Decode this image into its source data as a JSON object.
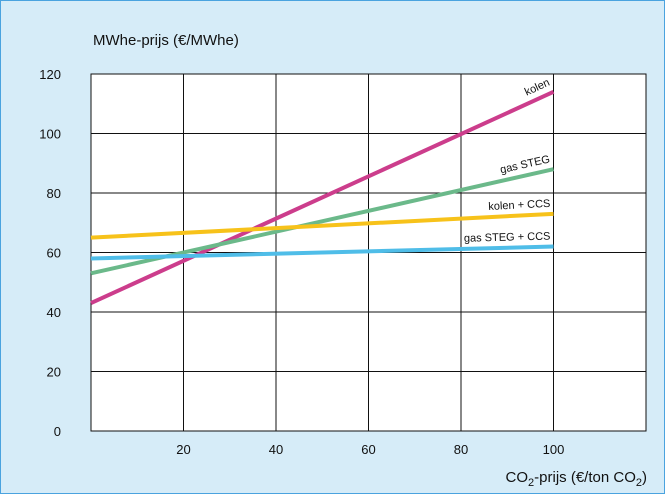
{
  "chart_data": {
    "type": "line",
    "ylabel": "MWhe-prijs (€/MWhe)",
    "xlabel": {
      "parts": [
        {
          "text": "CO",
          "sub": false
        },
        {
          "text": "2",
          "sub": true
        },
        {
          "text": "-prijs (€/ton CO",
          "sub": false
        },
        {
          "text": "2",
          "sub": true
        },
        {
          "text": ")",
          "sub": false
        }
      ]
    },
    "xlim": [
      0,
      120
    ],
    "ylim": [
      0,
      120
    ],
    "x_ticks": [
      20,
      40,
      60,
      80,
      100
    ],
    "y_ticks": [
      0,
      20,
      40,
      60,
      80,
      100,
      120
    ],
    "grid": true,
    "series": [
      {
        "name": "kolen",
        "color": "#cc3d8c",
        "x": [
          0,
          100
        ],
        "y": [
          43,
          114
        ]
      },
      {
        "name": "gas STEG",
        "color": "#6bb98a",
        "x": [
          0,
          100
        ],
        "y": [
          53,
          88
        ]
      },
      {
        "name": "kolen + CCS",
        "color": "#f7c21a",
        "x": [
          0,
          100
        ],
        "y": [
          65,
          73
        ]
      },
      {
        "name": "gas STEG + CCS",
        "color": "#4fbde8",
        "x": [
          0,
          100
        ],
        "y": [
          58,
          62
        ]
      }
    ]
  }
}
